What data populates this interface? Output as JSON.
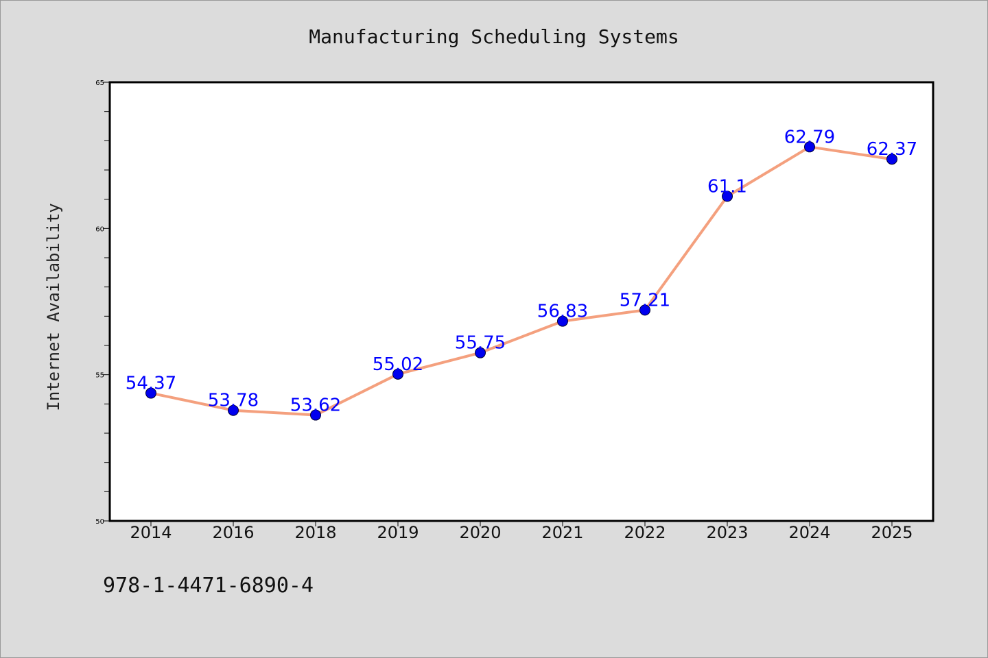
{
  "chart_data": {
    "type": "line",
    "title": "Manufacturing Scheduling Systems",
    "xlabel": "",
    "ylabel": "Internet Availability",
    "categories": [
      "2014",
      "2016",
      "2018",
      "2019",
      "2020",
      "2021",
      "2022",
      "2023",
      "2024",
      "2025"
    ],
    "series": [
      {
        "values": [
          54.37,
          53.78,
          53.62,
          55.02,
          55.75,
          56.83,
          57.21,
          61.1,
          62.79,
          62.37
        ],
        "labels": [
          "54.37",
          "53.78",
          "53.62",
          "55.02",
          "55.75",
          "56.83",
          "57.21",
          "61.1",
          "62.79",
          "62.37"
        ]
      }
    ],
    "ylim": [
      50,
      65
    ],
    "yticks": [
      "50",
      "55",
      "60",
      "65"
    ],
    "y_minor_step": 1,
    "grid": false,
    "colors": {
      "line": "#f4a07e",
      "marker": "#0000ee",
      "label": "#0000ff",
      "background": "#dcdcdc",
      "plot_background": "#ffffff"
    }
  },
  "footer_text": "978-1-4471-6890-4"
}
